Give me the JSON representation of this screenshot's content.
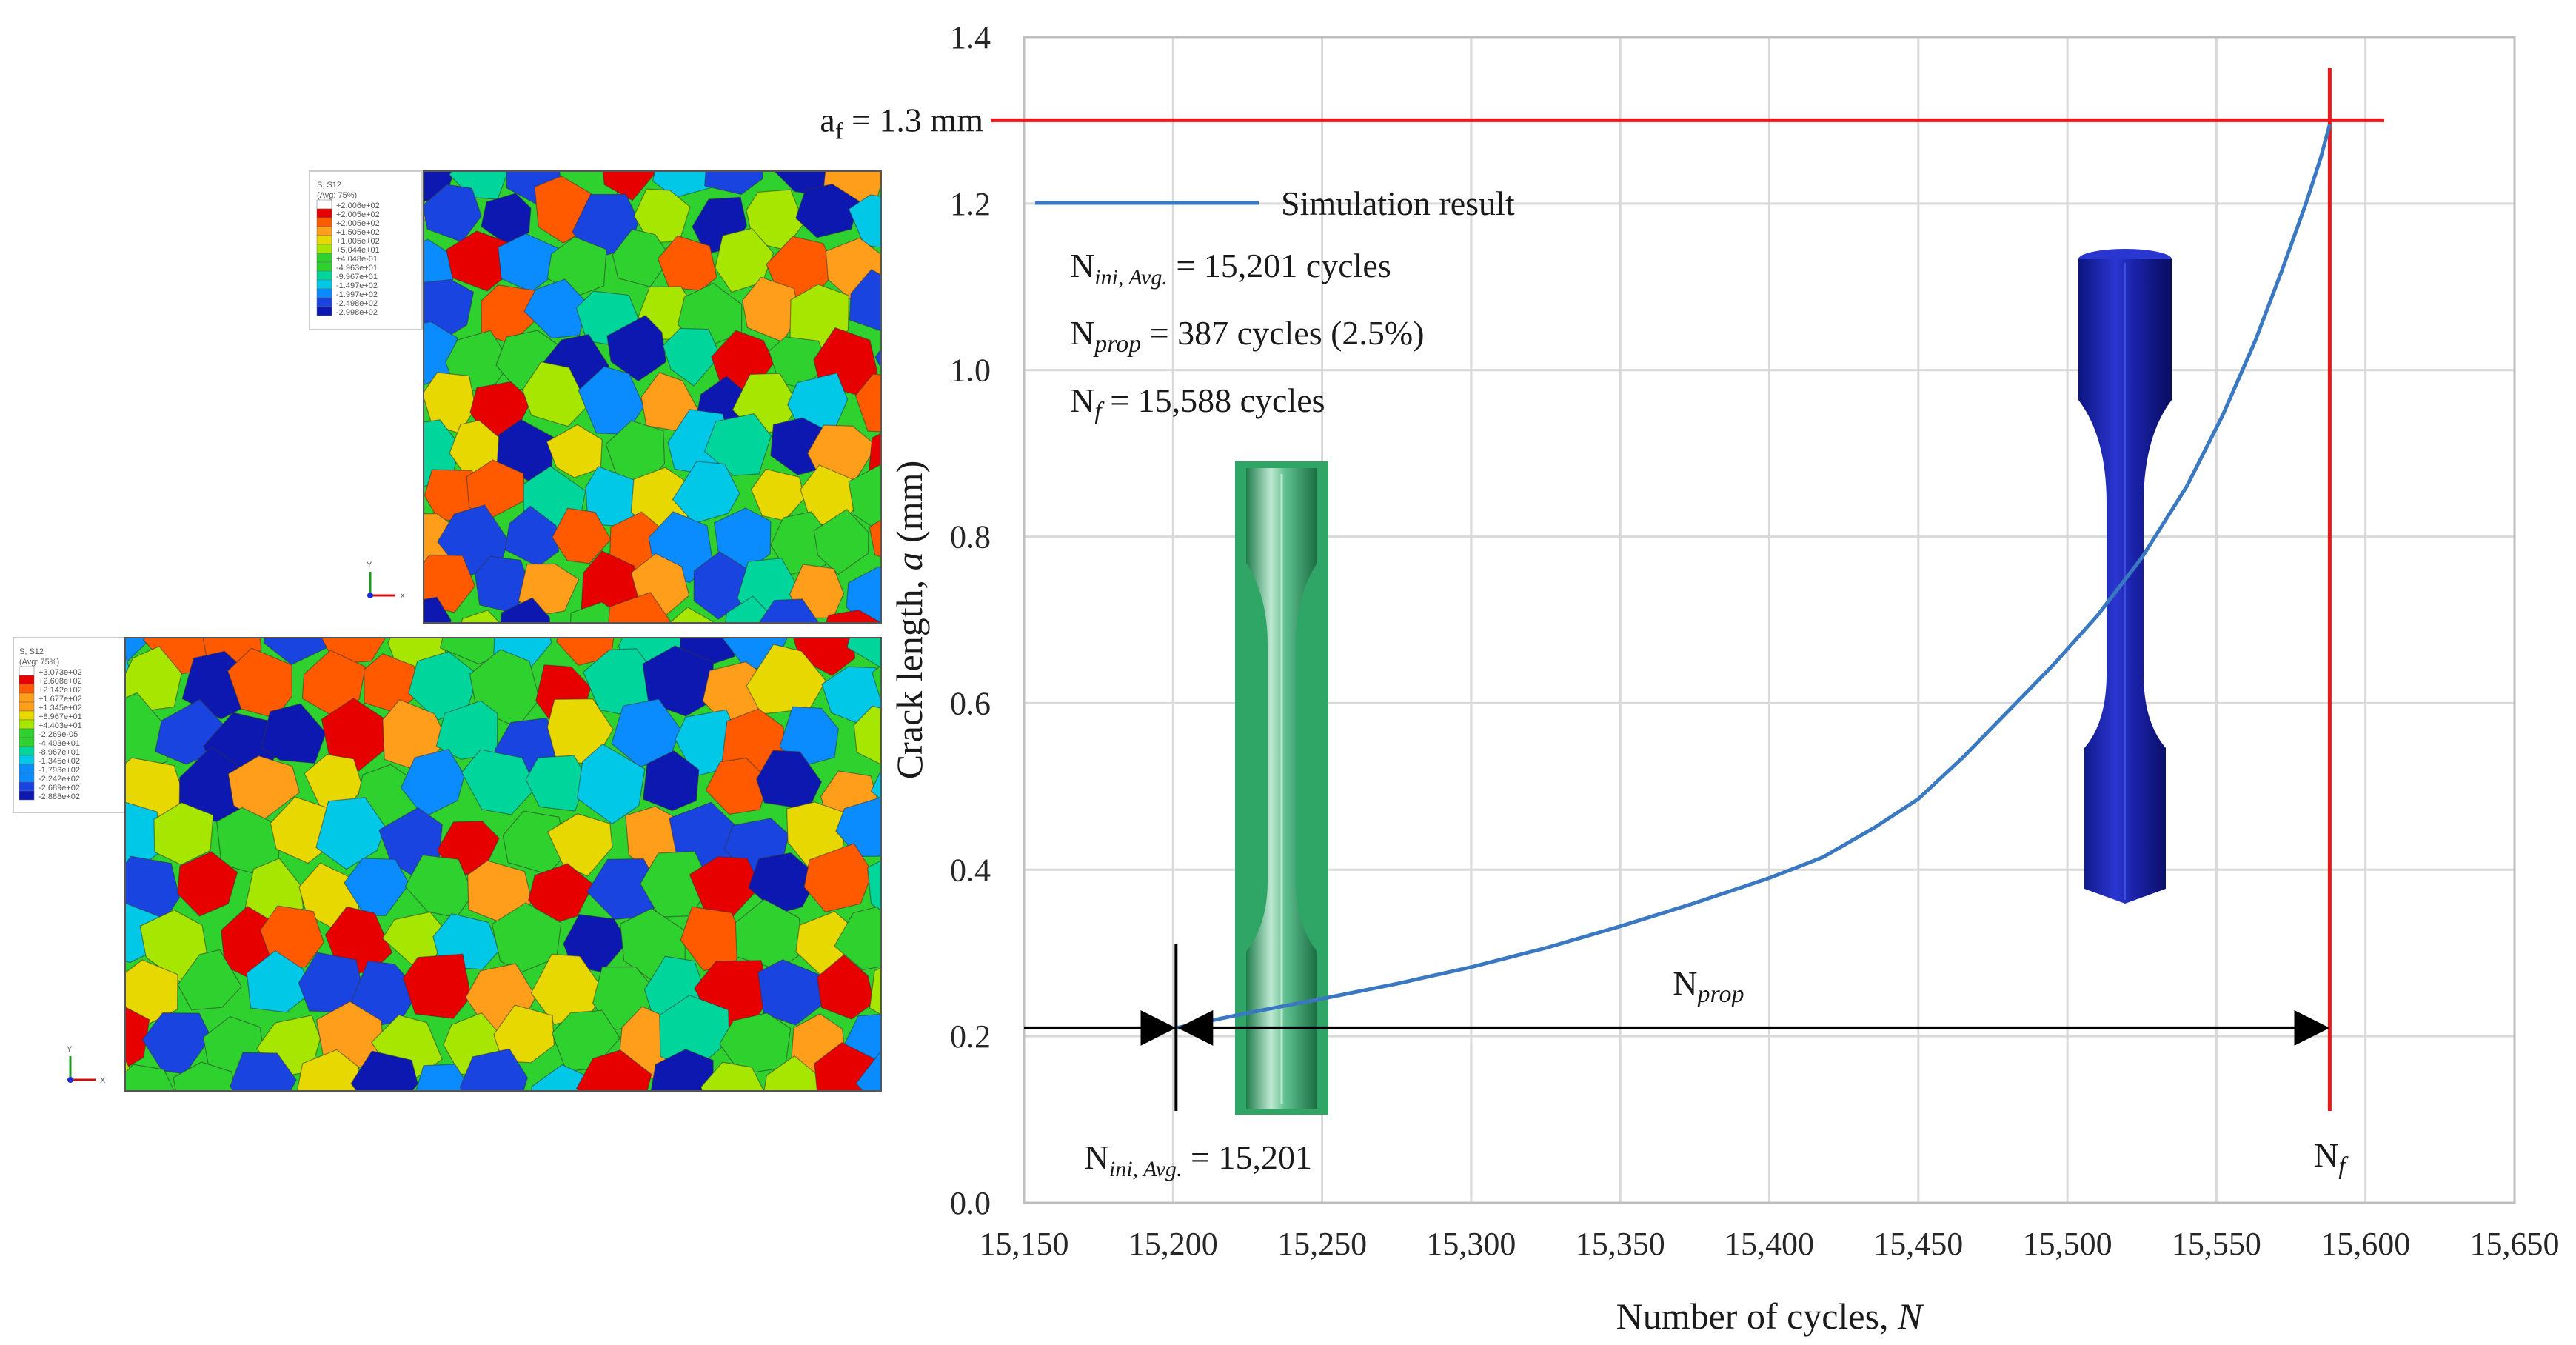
{
  "chart_data": {
    "type": "line",
    "xlabel": "Number of cycles, ",
    "xlabel_var": "N",
    "ylabel": "Crack length, ",
    "ylabel_var": "a",
    "ylabel_unit": " (mm)",
    "xlim": [
      15150,
      15650
    ],
    "ylim": [
      0.0,
      1.4
    ],
    "x_ticks": [
      15150,
      15200,
      15250,
      15300,
      15350,
      15400,
      15450,
      15500,
      15550,
      15600,
      15650
    ],
    "x_tick_labels": [
      "15,150",
      "15,200",
      "15,250",
      "15,300",
      "15,350",
      "15,400",
      "15,450",
      "15,500",
      "15,550",
      "15,600",
      "15,650"
    ],
    "y_ticks": [
      0.0,
      0.2,
      0.4,
      0.6,
      0.8,
      1.0,
      1.2,
      1.4
    ],
    "y_tick_labels": [
      "0.0",
      "0.2",
      "0.4",
      "0.6",
      "0.8",
      "1.0",
      "1.2",
      "1.4"
    ],
    "grid": true,
    "series": [
      {
        "name": "Simulation result",
        "color": "#3a78c2",
        "x": [
          15201,
          15225,
          15250,
          15275,
          15300,
          15325,
          15350,
          15375,
          15400,
          15418,
          15435,
          15450,
          15465,
          15480,
          15495,
          15510,
          15525,
          15540,
          15552,
          15563,
          15572,
          15580,
          15585,
          15588
        ],
        "y": [
          0.21,
          0.228,
          0.245,
          0.263,
          0.283,
          0.306,
          0.332,
          0.36,
          0.39,
          0.415,
          0.45,
          0.485,
          0.535,
          0.59,
          0.645,
          0.705,
          0.775,
          0.86,
          0.945,
          1.035,
          1.12,
          1.2,
          1.255,
          1.295
        ]
      }
    ],
    "reference_lines": {
      "horizontal": {
        "y": 1.3,
        "color": "#e8191c",
        "label_main": "a",
        "label_sub": "f",
        "label_rest": " = 1.3 mm"
      },
      "vertical": {
        "x": 15588,
        "color": "#e8191c",
        "label_main": "N",
        "label_sub": "f"
      }
    },
    "annotations": {
      "n_ini": {
        "main": "N",
        "sub": "ini, Avg.",
        "rest": " = 15,201 cycles"
      },
      "n_prop": {
        "main": "N",
        "sub": "prop",
        "rest": " = 387 cycles (2.5%)"
      },
      "n_f": {
        "main": "N",
        "sub": "f",
        "rest": " = 15,588 cycles"
      },
      "n_prop_arrow": {
        "main": "N",
        "sub": "prop",
        "x_from": 15201,
        "x_to": 15588,
        "y": 0.21
      },
      "n_ini_marker": {
        "main": "N",
        "sub": "ini, Avg.",
        "rest": " = 15,201",
        "x": 15201,
        "y": 0.21
      }
    }
  },
  "fe_legend_top": {
    "title": "S, S12",
    "subtitle": "(Avg: 75%)",
    "values": [
      "+2.006e+02",
      "+2.005e+02",
      "+2.005e+02",
      "+1.505e+02",
      "+1.005e+02",
      "+5.044e+01",
      "+4.048e-01",
      "-4.963e+01",
      "-9.967e+01",
      "-1.497e+02",
      "-1.997e+02",
      "-2.498e+02",
      "-2.998e+02"
    ]
  },
  "fe_legend_bottom": {
    "title": "S, S12",
    "subtitle": "(Avg: 75%)",
    "values": [
      "+3.073e+02",
      "+2.608e+02",
      "+2.142e+02",
      "+1.677e+02",
      "+1.345e+02",
      "+8.967e+01",
      "+4.403e+01",
      "-2.269e-05",
      "-4.403e+01",
      "-8.967e+01",
      "-1.345e+02",
      "-1.793e+02",
      "-2.242e+02",
      "-2.689e+02",
      "-2.888e+02"
    ]
  },
  "palette": {
    "fe_colors": [
      "#e60000",
      "#ff5a00",
      "#ff9e1a",
      "#e6d800",
      "#a6e600",
      "#2ed12e",
      "#00d69c",
      "#00c8e6",
      "#0a8cff",
      "#1a44e0",
      "#0d18b0"
    ],
    "specimen_green": "#2fa566",
    "specimen_blue": "#1a22a8"
  },
  "triad": {
    "y": "Y",
    "x": "X"
  }
}
